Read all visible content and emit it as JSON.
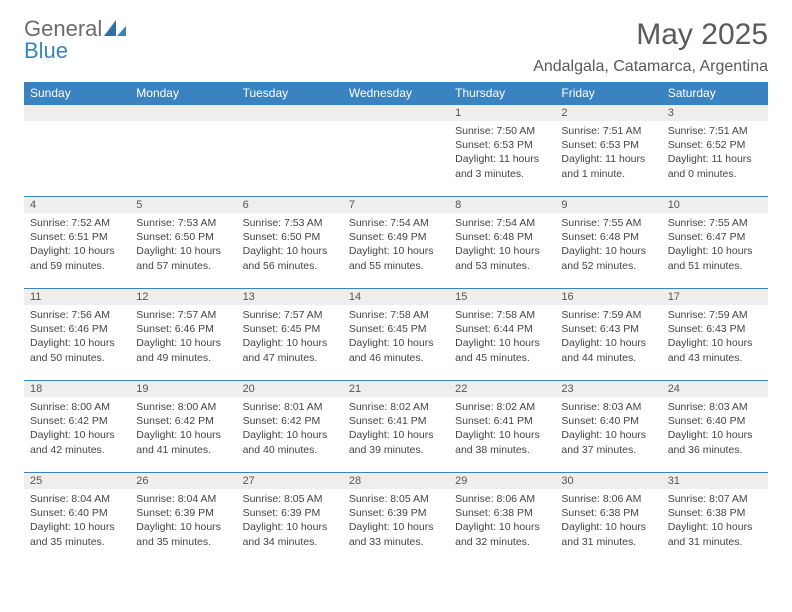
{
  "colors": {
    "header_bg": "#3b83c0",
    "header_text": "#ffffff",
    "daynum_bg": "#eeeeee",
    "daynum_text": "#555555",
    "body_text": "#444444",
    "rule": "#3b83c0",
    "title_text": "#5a5a5a",
    "logo_gray": "#6d6d6d",
    "logo_blue": "#3b83c0",
    "page_bg": "#ffffff"
  },
  "typography": {
    "font_family": "Arial, Helvetica, sans-serif",
    "month_title_size_pt": 22,
    "location_size_pt": 12,
    "weekday_header_size_pt": 9,
    "daynum_size_pt": 8,
    "body_size_pt": 8
  },
  "logo": {
    "general": "General",
    "blue": "Blue"
  },
  "title": "May 2025",
  "location": "Andalgala, Catamarca, Argentina",
  "weekdays": [
    "Sunday",
    "Monday",
    "Tuesday",
    "Wednesday",
    "Thursday",
    "Friday",
    "Saturday"
  ],
  "weeks": [
    [
      {
        "n": "",
        "sr": "",
        "ss": "",
        "dl": ""
      },
      {
        "n": "",
        "sr": "",
        "ss": "",
        "dl": ""
      },
      {
        "n": "",
        "sr": "",
        "ss": "",
        "dl": ""
      },
      {
        "n": "",
        "sr": "",
        "ss": "",
        "dl": ""
      },
      {
        "n": "1",
        "sr": "Sunrise: 7:50 AM",
        "ss": "Sunset: 6:53 PM",
        "dl": "Daylight: 11 hours and 3 minutes."
      },
      {
        "n": "2",
        "sr": "Sunrise: 7:51 AM",
        "ss": "Sunset: 6:53 PM",
        "dl": "Daylight: 11 hours and 1 minute."
      },
      {
        "n": "3",
        "sr": "Sunrise: 7:51 AM",
        "ss": "Sunset: 6:52 PM",
        "dl": "Daylight: 11 hours and 0 minutes."
      }
    ],
    [
      {
        "n": "4",
        "sr": "Sunrise: 7:52 AM",
        "ss": "Sunset: 6:51 PM",
        "dl": "Daylight: 10 hours and 59 minutes."
      },
      {
        "n": "5",
        "sr": "Sunrise: 7:53 AM",
        "ss": "Sunset: 6:50 PM",
        "dl": "Daylight: 10 hours and 57 minutes."
      },
      {
        "n": "6",
        "sr": "Sunrise: 7:53 AM",
        "ss": "Sunset: 6:50 PM",
        "dl": "Daylight: 10 hours and 56 minutes."
      },
      {
        "n": "7",
        "sr": "Sunrise: 7:54 AM",
        "ss": "Sunset: 6:49 PM",
        "dl": "Daylight: 10 hours and 55 minutes."
      },
      {
        "n": "8",
        "sr": "Sunrise: 7:54 AM",
        "ss": "Sunset: 6:48 PM",
        "dl": "Daylight: 10 hours and 53 minutes."
      },
      {
        "n": "9",
        "sr": "Sunrise: 7:55 AM",
        "ss": "Sunset: 6:48 PM",
        "dl": "Daylight: 10 hours and 52 minutes."
      },
      {
        "n": "10",
        "sr": "Sunrise: 7:55 AM",
        "ss": "Sunset: 6:47 PM",
        "dl": "Daylight: 10 hours and 51 minutes."
      }
    ],
    [
      {
        "n": "11",
        "sr": "Sunrise: 7:56 AM",
        "ss": "Sunset: 6:46 PM",
        "dl": "Daylight: 10 hours and 50 minutes."
      },
      {
        "n": "12",
        "sr": "Sunrise: 7:57 AM",
        "ss": "Sunset: 6:46 PM",
        "dl": "Daylight: 10 hours and 49 minutes."
      },
      {
        "n": "13",
        "sr": "Sunrise: 7:57 AM",
        "ss": "Sunset: 6:45 PM",
        "dl": "Daylight: 10 hours and 47 minutes."
      },
      {
        "n": "14",
        "sr": "Sunrise: 7:58 AM",
        "ss": "Sunset: 6:45 PM",
        "dl": "Daylight: 10 hours and 46 minutes."
      },
      {
        "n": "15",
        "sr": "Sunrise: 7:58 AM",
        "ss": "Sunset: 6:44 PM",
        "dl": "Daylight: 10 hours and 45 minutes."
      },
      {
        "n": "16",
        "sr": "Sunrise: 7:59 AM",
        "ss": "Sunset: 6:43 PM",
        "dl": "Daylight: 10 hours and 44 minutes."
      },
      {
        "n": "17",
        "sr": "Sunrise: 7:59 AM",
        "ss": "Sunset: 6:43 PM",
        "dl": "Daylight: 10 hours and 43 minutes."
      }
    ],
    [
      {
        "n": "18",
        "sr": "Sunrise: 8:00 AM",
        "ss": "Sunset: 6:42 PM",
        "dl": "Daylight: 10 hours and 42 minutes."
      },
      {
        "n": "19",
        "sr": "Sunrise: 8:00 AM",
        "ss": "Sunset: 6:42 PM",
        "dl": "Daylight: 10 hours and 41 minutes."
      },
      {
        "n": "20",
        "sr": "Sunrise: 8:01 AM",
        "ss": "Sunset: 6:42 PM",
        "dl": "Daylight: 10 hours and 40 minutes."
      },
      {
        "n": "21",
        "sr": "Sunrise: 8:02 AM",
        "ss": "Sunset: 6:41 PM",
        "dl": "Daylight: 10 hours and 39 minutes."
      },
      {
        "n": "22",
        "sr": "Sunrise: 8:02 AM",
        "ss": "Sunset: 6:41 PM",
        "dl": "Daylight: 10 hours and 38 minutes."
      },
      {
        "n": "23",
        "sr": "Sunrise: 8:03 AM",
        "ss": "Sunset: 6:40 PM",
        "dl": "Daylight: 10 hours and 37 minutes."
      },
      {
        "n": "24",
        "sr": "Sunrise: 8:03 AM",
        "ss": "Sunset: 6:40 PM",
        "dl": "Daylight: 10 hours and 36 minutes."
      }
    ],
    [
      {
        "n": "25",
        "sr": "Sunrise: 8:04 AM",
        "ss": "Sunset: 6:40 PM",
        "dl": "Daylight: 10 hours and 35 minutes."
      },
      {
        "n": "26",
        "sr": "Sunrise: 8:04 AM",
        "ss": "Sunset: 6:39 PM",
        "dl": "Daylight: 10 hours and 35 minutes."
      },
      {
        "n": "27",
        "sr": "Sunrise: 8:05 AM",
        "ss": "Sunset: 6:39 PM",
        "dl": "Daylight: 10 hours and 34 minutes."
      },
      {
        "n": "28",
        "sr": "Sunrise: 8:05 AM",
        "ss": "Sunset: 6:39 PM",
        "dl": "Daylight: 10 hours and 33 minutes."
      },
      {
        "n": "29",
        "sr": "Sunrise: 8:06 AM",
        "ss": "Sunset: 6:38 PM",
        "dl": "Daylight: 10 hours and 32 minutes."
      },
      {
        "n": "30",
        "sr": "Sunrise: 8:06 AM",
        "ss": "Sunset: 6:38 PM",
        "dl": "Daylight: 10 hours and 31 minutes."
      },
      {
        "n": "31",
        "sr": "Sunrise: 8:07 AM",
        "ss": "Sunset: 6:38 PM",
        "dl": "Daylight: 10 hours and 31 minutes."
      }
    ]
  ]
}
